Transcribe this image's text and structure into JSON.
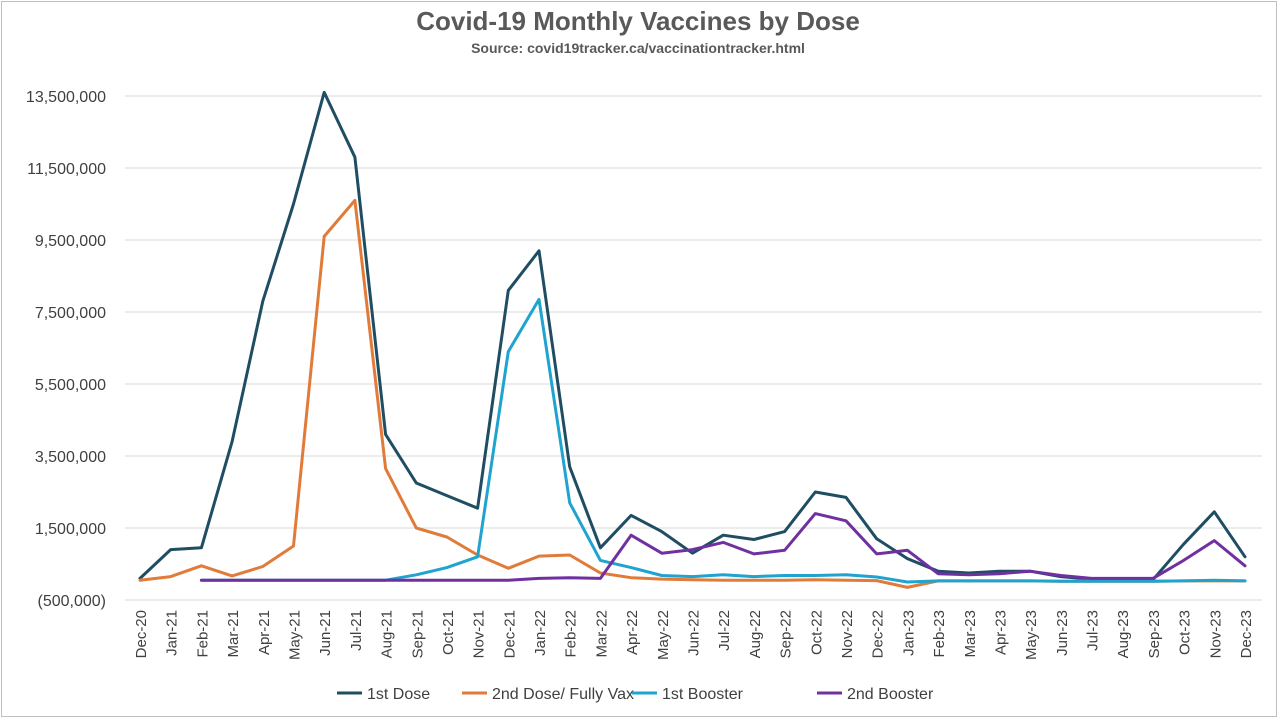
{
  "chart_data": {
    "type": "line",
    "title": "Covid-19 Monthly Vaccines by Dose",
    "subtitle": "Source: covid19tracker.ca/vaccinationtracker.html",
    "xlabel": "",
    "ylabel": "",
    "ylim": [
      -500000,
      14500000
    ],
    "yticks": [
      -500000,
      1500000,
      3500000,
      5500000,
      7500000,
      9500000,
      11500000,
      13500000
    ],
    "ytick_labels": [
      "(500,000)",
      "1,500,000",
      "3,500,000",
      "5,500,000",
      "7,500,000",
      "9,500,000",
      "11,500,000",
      "13,500,000"
    ],
    "grid": "horizontal",
    "legend_position": "bottom",
    "categories": [
      "Dec-20",
      "Jan-21",
      "Feb-21",
      "Mar-21",
      "Apr-21",
      "May-21",
      "Jun-21",
      "Jul-21",
      "Aug-21",
      "Sep-21",
      "Oct-21",
      "Nov-21",
      "Dec-21",
      "Jan-22",
      "Feb-22",
      "Mar-22",
      "Apr-22",
      "May-22",
      "Jun-22",
      "Jul-22",
      "Aug-22",
      "Sep-22",
      "Oct-22",
      "Nov-22",
      "Dec-22",
      "Jan-23",
      "Feb-23",
      "Mar-23",
      "Apr-23",
      "May-23",
      "Jun-23",
      "Jul-23",
      "Aug-23",
      "Sep-23",
      "Oct-23",
      "Nov-23",
      "Dec-23"
    ],
    "series": [
      {
        "name": "1st Dose",
        "color": "#1f4e63",
        "values": [
          100000,
          900000,
          950000,
          3900000,
          7800000,
          10500000,
          13600000,
          11800000,
          4100000,
          2750000,
          2400000,
          2050000,
          8100000,
          9200000,
          3200000,
          950000,
          1850000,
          1400000,
          800000,
          1300000,
          1180000,
          1400000,
          2500000,
          2350000,
          1200000,
          650000,
          300000,
          250000,
          300000,
          300000,
          150000,
          80000,
          60000,
          60000,
          1050000,
          1950000,
          700000
        ]
      },
      {
        "name": "2nd Dose/ Fully Vax",
        "color": "#e07b39",
        "values": [
          50000,
          150000,
          450000,
          170000,
          430000,
          1000000,
          9600000,
          10600000,
          3150000,
          1500000,
          1250000,
          750000,
          380000,
          720000,
          750000,
          250000,
          120000,
          80000,
          60000,
          50000,
          50000,
          50000,
          60000,
          50000,
          40000,
          -150000,
          30000,
          30000,
          30000,
          30000,
          20000,
          20000,
          20000,
          20000,
          30000,
          30000,
          30000
        ]
      },
      {
        "name": "1st Booster",
        "color": "#1fa3cf",
        "values": [
          null,
          null,
          50000,
          50000,
          50000,
          50000,
          50000,
          50000,
          50000,
          200000,
          400000,
          700000,
          6400000,
          7850000,
          2200000,
          600000,
          400000,
          180000,
          150000,
          200000,
          150000,
          180000,
          180000,
          200000,
          140000,
          0,
          30000,
          30000,
          30000,
          30000,
          20000,
          20000,
          20000,
          20000,
          30000,
          50000,
          30000
        ]
      },
      {
        "name": "2nd Booster",
        "color": "#7030a0",
        "values": [
          null,
          null,
          50000,
          50000,
          50000,
          50000,
          50000,
          50000,
          50000,
          50000,
          50000,
          50000,
          50000,
          100000,
          120000,
          100000,
          1300000,
          800000,
          900000,
          1100000,
          780000,
          880000,
          1900000,
          1700000,
          780000,
          880000,
          230000,
          200000,
          230000,
          300000,
          180000,
          100000,
          100000,
          100000,
          600000,
          1150000,
          450000
        ]
      }
    ]
  }
}
